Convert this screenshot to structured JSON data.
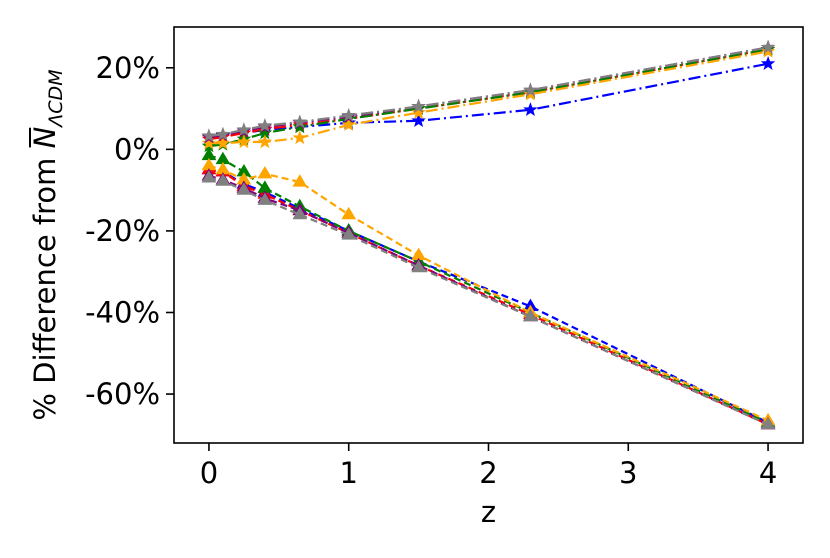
{
  "chart_data": {
    "type": "line",
    "title": "",
    "xlabel": "z",
    "ylabel": {
      "prefix": "% Difference from ",
      "symbol": "N",
      "subscript": "ΛCDM"
    },
    "xlim": [
      -0.25,
      4.25
    ],
    "ylim": [
      -72,
      30
    ],
    "x_ticks": [
      0,
      1,
      2,
      3,
      4
    ],
    "x_tick_labels": [
      "0",
      "1",
      "2",
      "3",
      "4"
    ],
    "y_ticks": [
      20,
      0,
      -20,
      -40,
      -60
    ],
    "y_tick_labels": [
      "20%",
      "0%",
      "-20%",
      "-40%",
      "-60%"
    ],
    "grid": false,
    "legend": "none",
    "x": [
      0.0,
      0.1,
      0.25,
      0.4,
      0.65,
      1.0,
      1.5,
      2.3,
      4.0
    ],
    "series": [
      {
        "color": "#0000ff",
        "linestyle": "dashdot",
        "marker": "star",
        "values": [
          3.0,
          3.3,
          4.0,
          4.8,
          5.5,
          6.5,
          7.0,
          9.7,
          21.0
        ]
      },
      {
        "color": "#ff0000",
        "linestyle": "dashdot",
        "marker": "star",
        "values": [
          2.5,
          3.0,
          4.0,
          5.0,
          6.0,
          7.5,
          10.0,
          14.0,
          24.5
        ]
      },
      {
        "color": "#008000",
        "linestyle": "dashdot",
        "marker": "star",
        "values": [
          0.8,
          1.2,
          2.5,
          4.0,
          5.5,
          7.5,
          10.0,
          14.0,
          24.5
        ]
      },
      {
        "color": "#ffa500",
        "linestyle": "dashdot",
        "marker": "star",
        "values": [
          1.5,
          1.5,
          1.8,
          1.8,
          2.8,
          6.0,
          9.0,
          13.5,
          24.0
        ]
      },
      {
        "color": "#800080",
        "linestyle": "dashdot",
        "marker": "star",
        "values": [
          3.0,
          3.5,
          4.5,
          5.5,
          6.5,
          8.0,
          10.5,
          14.5,
          25.0
        ]
      },
      {
        "color": "#808080",
        "linestyle": "dashdot",
        "marker": "star",
        "values": [
          3.3,
          3.7,
          4.8,
          5.8,
          6.7,
          8.3,
          10.5,
          14.5,
          25.0
        ]
      },
      {
        "color": "#0000ff",
        "linestyle": "dashed",
        "marker": "triangle",
        "values": [
          -5.0,
          -5.5,
          -8.5,
          -10.5,
          -14.5,
          -20.0,
          -27.5,
          -38.5,
          -67.0
        ]
      },
      {
        "color": "#ff0000",
        "linestyle": "dashed",
        "marker": "triangle",
        "values": [
          -5.0,
          -5.5,
          -9.0,
          -11.0,
          -15.0,
          -20.5,
          -28.5,
          -40.5,
          -67.5
        ]
      },
      {
        "color": "#008000",
        "linestyle": "dashed",
        "marker": "triangle",
        "values": [
          -1.5,
          -2.5,
          -5.5,
          -9.5,
          -14.0,
          -20.0,
          -27.5,
          -40.0,
          -67.0
        ]
      },
      {
        "color": "#ffa500",
        "linestyle": "dashed",
        "marker": "triangle",
        "values": [
          -4.0,
          -5.0,
          -7.5,
          -6.0,
          -8.0,
          -16.0,
          -26.0,
          -40.0,
          -66.5
        ]
      },
      {
        "color": "#800080",
        "linestyle": "dashed",
        "marker": "triangle",
        "values": [
          -6.5,
          -7.5,
          -9.5,
          -12.0,
          -15.0,
          -20.5,
          -28.5,
          -41.0,
          -67.5
        ]
      },
      {
        "color": "#808080",
        "linestyle": "dashed",
        "marker": "triangle",
        "values": [
          -7.0,
          -7.8,
          -10.0,
          -12.5,
          -16.0,
          -21.0,
          -29.0,
          -41.0,
          -67.5
        ]
      }
    ]
  }
}
